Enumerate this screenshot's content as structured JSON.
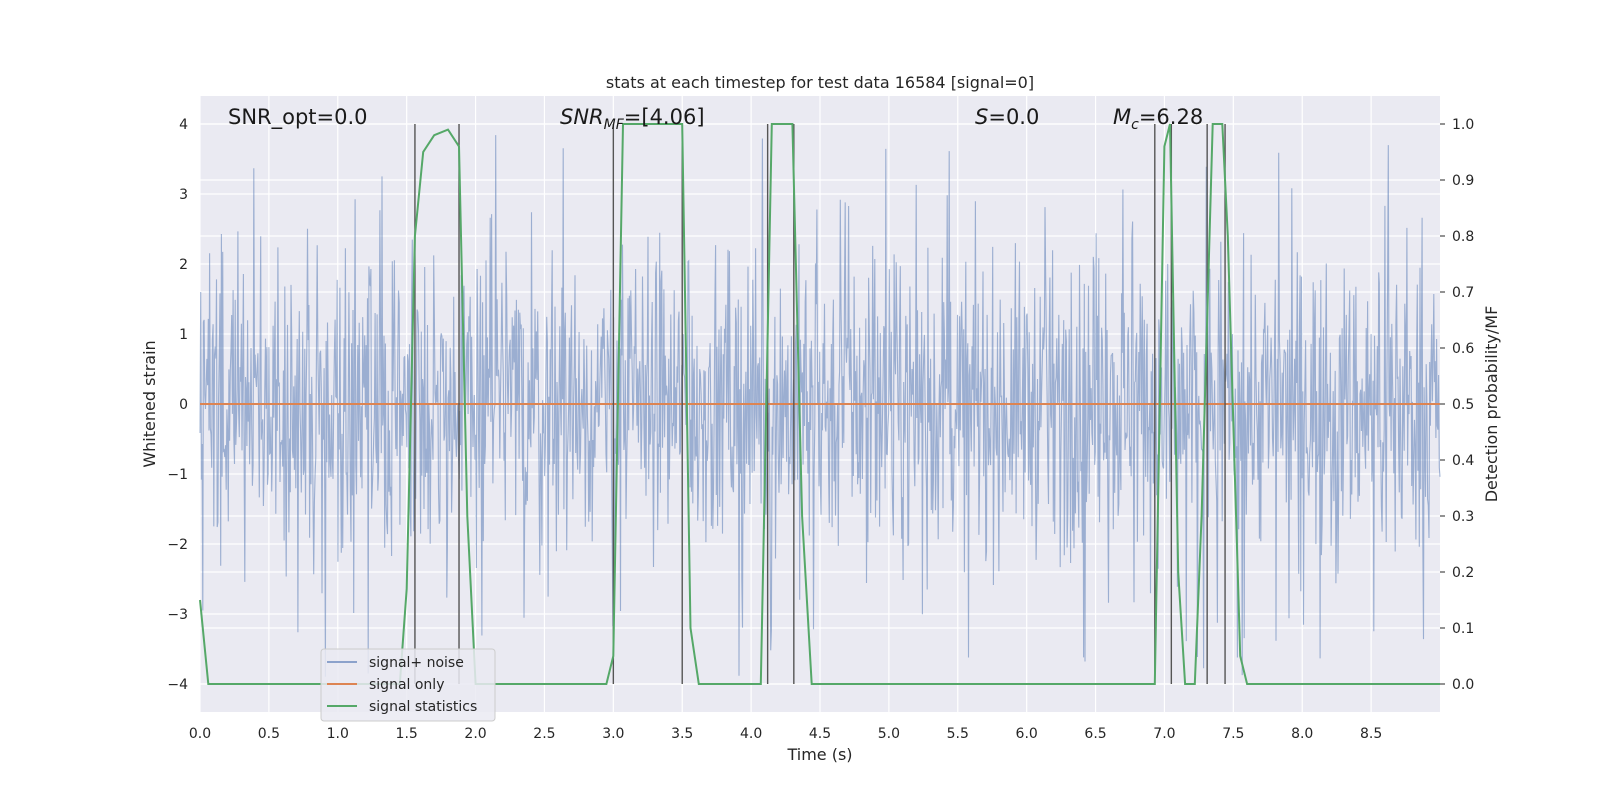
{
  "chart_data": {
    "type": "line",
    "title": "stats at each timestep for test data 16584 [signal=0]",
    "xlabel": "Time (s)",
    "ylabel_left": "Whitened strain",
    "ylabel_right": "Detection probability/MF",
    "xlim": [
      0.0,
      9.0
    ],
    "ylim_left": [
      -4.4,
      4.4
    ],
    "ylim_right": [
      -0.05,
      1.05
    ],
    "xticks": [
      "0.0",
      "0.5",
      "1.0",
      "1.5",
      "2.0",
      "2.5",
      "3.0",
      "3.5",
      "4.0",
      "4.5",
      "5.0",
      "5.5",
      "6.0",
      "6.5",
      "7.0",
      "7.5",
      "8.0",
      "8.5"
    ],
    "yticks_left": [
      "−4",
      "−3",
      "−2",
      "−1",
      "0",
      "1",
      "2",
      "3",
      "4"
    ],
    "yticks_right": [
      "0.0",
      "0.1",
      "0.2",
      "0.3",
      "0.4",
      "0.5",
      "0.6",
      "0.7",
      "0.8",
      "0.9",
      "1.0"
    ],
    "grid": true,
    "background": "#eaeaf2",
    "legend_position": "lower-left",
    "legend": [
      {
        "label": "signal+ noise",
        "color": "#4c72b0"
      },
      {
        "label": "signal only",
        "color": "#dd8452"
      },
      {
        "label": "signal statistics",
        "color": "#55a868"
      }
    ],
    "annotations": [
      {
        "text": "SNR_opt=0.0"
      },
      {
        "text": "SNR",
        "sub": "MF",
        "tail": "=[4.06]"
      },
      {
        "text": "S",
        "tail": "=0.0"
      },
      {
        "text": "M",
        "sub": "c",
        "tail": "=6.28"
      }
    ],
    "series": [
      {
        "name": "signal+ noise",
        "color": "#4c72b0",
        "axis": "left",
        "description": "whitened noise, roughly +/-1.6 bulk with peaks to about +/-3.9",
        "amplitude_core": 1.6,
        "amplitude_peak": 3.9
      },
      {
        "name": "signal only",
        "color": "#dd8452",
        "axis": "left",
        "x": [
          0.0,
          9.0
        ],
        "y": [
          0.0,
          0.0
        ]
      },
      {
        "name": "signal statistics",
        "color": "#55a868",
        "axis": "right",
        "x": [
          0.0,
          0.06,
          0.15,
          1.0,
          1.45,
          1.5,
          1.56,
          1.62,
          1.7,
          1.8,
          1.88,
          1.94,
          2.0,
          2.95,
          3.0,
          3.07,
          3.5,
          3.56,
          3.62,
          4.07,
          4.15,
          4.2,
          4.3,
          4.37,
          4.44,
          6.93,
          7.0,
          7.04,
          7.1,
          7.15,
          7.22,
          7.27,
          7.35,
          7.42,
          7.46,
          7.55,
          7.6,
          7.8,
          8.0,
          9.0
        ],
        "y": [
          0.15,
          0.0,
          0.0,
          0.0,
          0.0,
          0.17,
          0.8,
          0.95,
          0.98,
          0.99,
          0.96,
          0.3,
          0.0,
          0.0,
          0.05,
          1.0,
          1.0,
          0.1,
          0.0,
          0.0,
          1.0,
          1.0,
          1.0,
          0.3,
          0.0,
          0.0,
          0.96,
          1.0,
          0.2,
          0.0,
          0.0,
          0.3,
          1.0,
          1.0,
          0.8,
          0.05,
          0.0,
          0.0,
          0.0,
          0.0
        ]
      }
    ],
    "vertical_lines_x": [
      1.56,
      1.88,
      3.0,
      3.5,
      4.12,
      4.31,
      6.93,
      7.05,
      7.31,
      7.44
    ]
  }
}
